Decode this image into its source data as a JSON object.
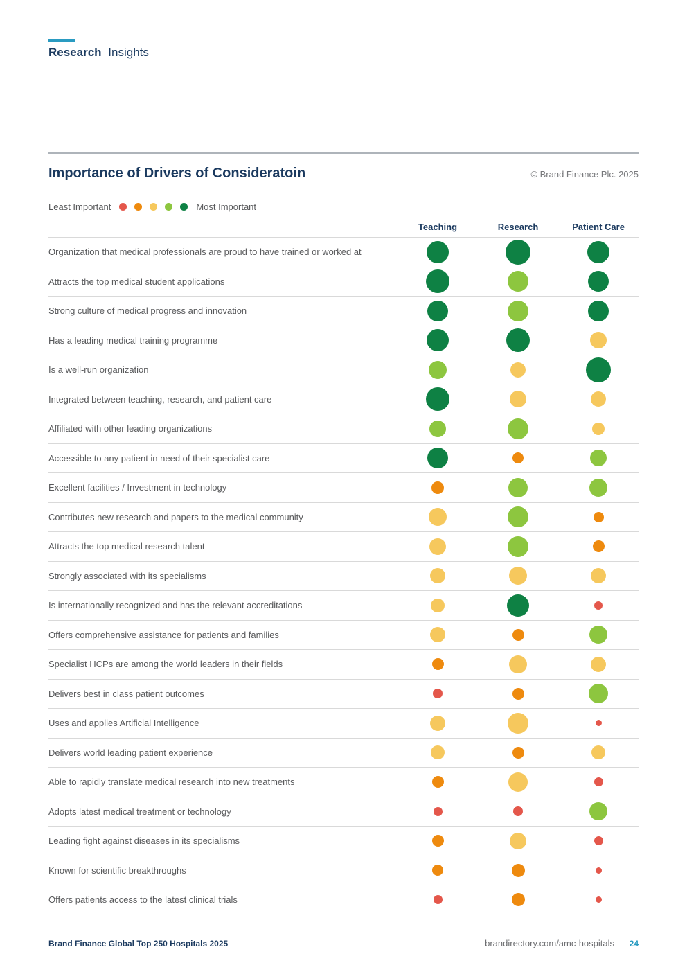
{
  "eyebrow": {
    "bold": "Research",
    "regular": "Insights"
  },
  "header": {
    "title": "Importance of Drivers of Consideratoin",
    "copyright": "© Brand Finance Plc. 2025"
  },
  "legend": {
    "left": "Least Important",
    "right": "Most Important"
  },
  "colors": {
    "navy": "#1b3a5f",
    "teal": "#2a9bc1",
    "red": "#e4574b",
    "orange": "#ee8a0e",
    "yellow": "#f6c85d",
    "light_green": "#8dc63f",
    "dark_green": "#0e8144"
  },
  "chart_data": {
    "type": "heatmap",
    "title": "Importance of Drivers of Consideratoin",
    "columns": [
      "Teaching",
      "Research",
      "Patient Care"
    ],
    "scale_order": [
      "red",
      "orange",
      "yellow",
      "light_green",
      "dark_green"
    ],
    "scale_meaning": "Importance level 1-5: 1=red (least important), 2=orange, 3=yellow, 4=light_green, 5=dark_green (most important); larger dot diameter = higher importance",
    "rows": [
      {
        "label": "Organization that medical professionals are proud to have trained or worked at",
        "levels": [
          5,
          5,
          5
        ],
        "sizes": [
          32,
          36,
          32
        ]
      },
      {
        "label": "Attracts the top medical student applications",
        "levels": [
          5,
          4,
          5
        ],
        "sizes": [
          34,
          30,
          30
        ]
      },
      {
        "label": "Strong culture of medical progress and innovation",
        "levels": [
          5,
          4,
          5
        ],
        "sizes": [
          30,
          30,
          30
        ]
      },
      {
        "label": "Has a leading medical training programme",
        "levels": [
          5,
          5,
          3
        ],
        "sizes": [
          32,
          34,
          24
        ]
      },
      {
        "label": "Is a well-run organization",
        "levels": [
          4,
          3,
          5
        ],
        "sizes": [
          26,
          22,
          36
        ]
      },
      {
        "label": "Integrated between teaching, research, and patient care",
        "levels": [
          5,
          3,
          3
        ],
        "sizes": [
          34,
          24,
          22
        ]
      },
      {
        "label": "Affiliated with other leading organizations",
        "levels": [
          4,
          4,
          3
        ],
        "sizes": [
          24,
          30,
          18
        ]
      },
      {
        "label": "Accessible to any patient in need of their specialist care",
        "levels": [
          5,
          2,
          4
        ],
        "sizes": [
          30,
          16,
          24
        ]
      },
      {
        "label": "Excellent facilities / Investment in technology",
        "levels": [
          2,
          4,
          4
        ],
        "sizes": [
          18,
          28,
          26
        ]
      },
      {
        "label": "Contributes new research and papers to the medical community",
        "levels": [
          3,
          4,
          2
        ],
        "sizes": [
          26,
          30,
          15
        ]
      },
      {
        "label": "Attracts the top medical research talent",
        "levels": [
          3,
          4,
          2
        ],
        "sizes": [
          24,
          30,
          17
        ]
      },
      {
        "label": "Strongly associated with its specialisms",
        "levels": [
          3,
          3,
          3
        ],
        "sizes": [
          22,
          26,
          22
        ]
      },
      {
        "label": "Is internationally recognized and has the relevant accreditations",
        "levels": [
          3,
          5,
          1
        ],
        "sizes": [
          20,
          32,
          12
        ]
      },
      {
        "label": "Offers comprehensive assistance for patients and families",
        "levels": [
          3,
          2,
          4
        ],
        "sizes": [
          22,
          17,
          26
        ]
      },
      {
        "label": "Specialist HCPs are among the world leaders in their fields",
        "levels": [
          2,
          3,
          3
        ],
        "sizes": [
          17,
          26,
          22
        ]
      },
      {
        "label": "Delivers best in class patient outcomes",
        "levels": [
          1,
          2,
          4
        ],
        "sizes": [
          14,
          17,
          28
        ]
      },
      {
        "label": "Uses and applies Artificial Intelligence",
        "levels": [
          3,
          3,
          1
        ],
        "sizes": [
          22,
          30,
          9
        ]
      },
      {
        "label": "Delivers world leading patient experience",
        "levels": [
          3,
          2,
          3
        ],
        "sizes": [
          20,
          17,
          20
        ]
      },
      {
        "label": "Able to rapidly translate medical research into new treatments",
        "levels": [
          2,
          3,
          1
        ],
        "sizes": [
          17,
          28,
          13
        ]
      },
      {
        "label": "Adopts latest medical treatment or technology",
        "levels": [
          1,
          1,
          4
        ],
        "sizes": [
          13,
          14,
          26
        ]
      },
      {
        "label": "Leading fight against diseases in its specialisms",
        "levels": [
          2,
          3,
          1
        ],
        "sizes": [
          17,
          24,
          13
        ]
      },
      {
        "label": "Known for scientific breakthroughs",
        "levels": [
          2,
          2,
          1
        ],
        "sizes": [
          16,
          19,
          9
        ]
      },
      {
        "label": "Offers patients access to the latest clinical trials",
        "levels": [
          1,
          2,
          1
        ],
        "sizes": [
          13,
          19,
          9
        ]
      }
    ]
  },
  "footer": {
    "left": "Brand Finance Global Top 250 Hospitals 2025",
    "url": "brandirectory.com/amc-hospitals",
    "page_number": "24"
  }
}
